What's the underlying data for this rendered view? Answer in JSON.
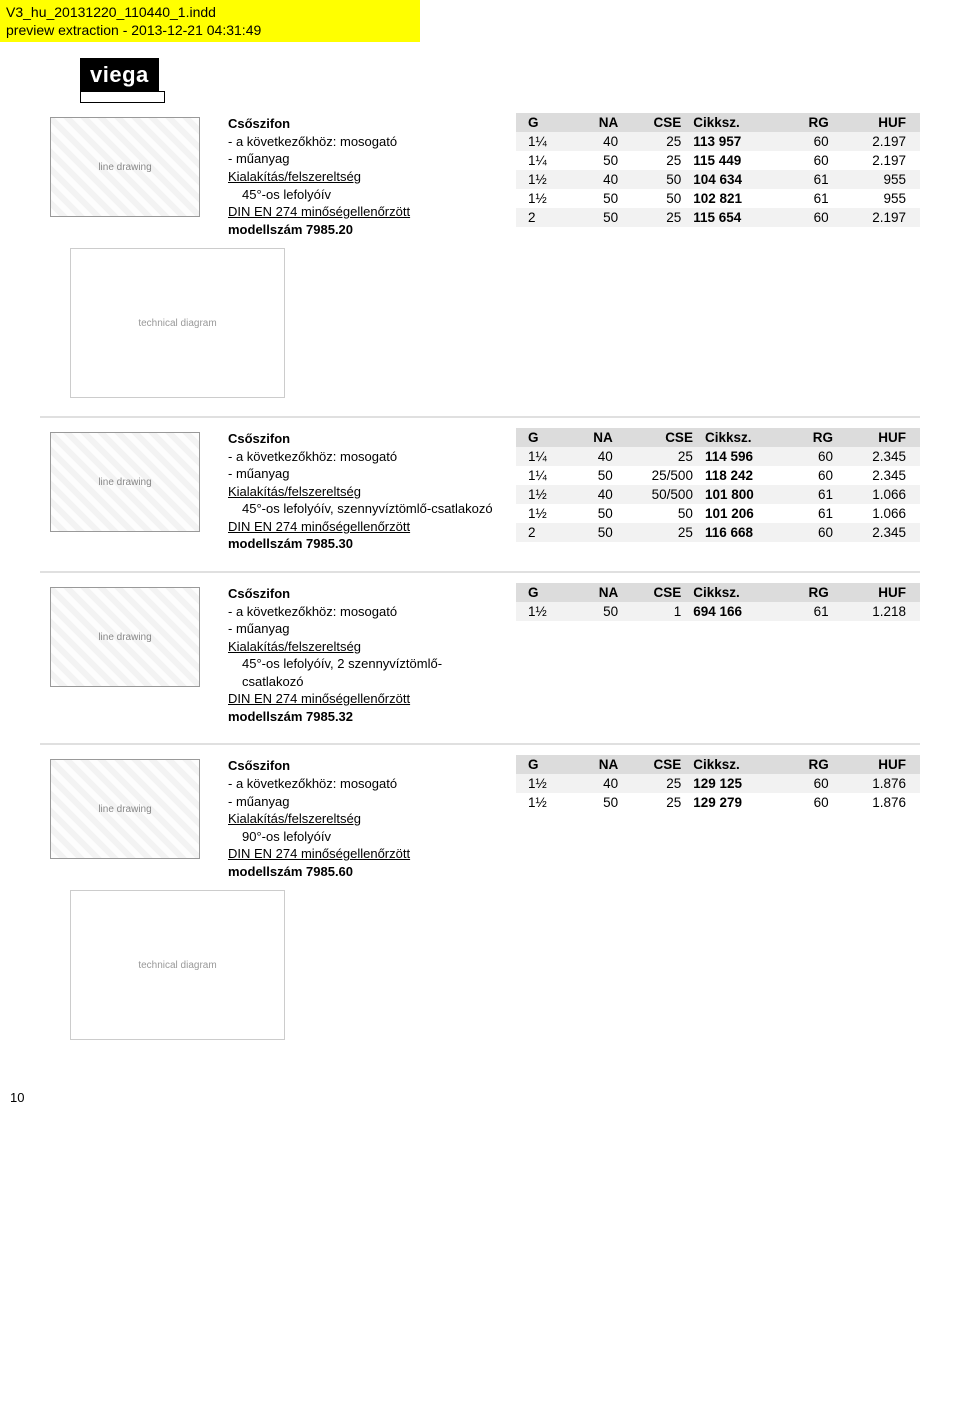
{
  "banner": {
    "line1": "V3_hu_20131220_110440_1.indd",
    "line2": "preview extraction - 2013-12-21 04:31:49"
  },
  "logo": "viega",
  "image_labels": {
    "product": "line drawing",
    "diagram": "technical diagram"
  },
  "table_headers": {
    "g": "G",
    "na": "NA",
    "cse": "CSE",
    "cikksz": "Cikksz.",
    "rg": "RG",
    "huf": "HUF"
  },
  "sections": [
    {
      "desc": {
        "title": "Csőszifon",
        "bullets": [
          "a következőkhöz: mosogató",
          "műanyag"
        ],
        "config_heading": "Kialakítás/felszereltség",
        "config_items": [
          "45°-os lefolyóív"
        ],
        "din": "DIN EN 274 minőségellenőrzött",
        "model": "modellszám 7985.20"
      },
      "rows": [
        {
          "g": "1¼",
          "na": "40",
          "cse": "25",
          "cikksz": "113 957",
          "rg": "60",
          "huf": "2.197"
        },
        {
          "g": "1¼",
          "na": "50",
          "cse": "25",
          "cikksz": "115 449",
          "rg": "60",
          "huf": "2.197"
        },
        {
          "g": "1½",
          "na": "40",
          "cse": "50",
          "cikksz": "104 634",
          "rg": "61",
          "huf": "955"
        },
        {
          "g": "1½",
          "na": "50",
          "cse": "50",
          "cikksz": "102 821",
          "rg": "61",
          "huf": "955"
        },
        {
          "g": "2",
          "na": "50",
          "cse": "25",
          "cikksz": "115 654",
          "rg": "60",
          "huf": "2.197"
        }
      ],
      "show_diagram_after": true
    },
    {
      "desc": {
        "title": "Csőszifon",
        "bullets": [
          "a következőkhöz: mosogató",
          "műanyag"
        ],
        "config_heading": "Kialakítás/felszereltség",
        "config_items": [
          "45°-os lefolyóív, szennyvíztömlő-csatlakozó"
        ],
        "din": "DIN EN 274 minőségellenőrzött",
        "model": "modellszám 7985.30"
      },
      "rows": [
        {
          "g": "1¼",
          "na": "40",
          "cse": "25",
          "cikksz": "114 596",
          "rg": "60",
          "huf": "2.345"
        },
        {
          "g": "1¼",
          "na": "50",
          "cse": "25/500",
          "cikksz": "118 242",
          "rg": "60",
          "huf": "2.345"
        },
        {
          "g": "1½",
          "na": "40",
          "cse": "50/500",
          "cikksz": "101 800",
          "rg": "61",
          "huf": "1.066"
        },
        {
          "g": "1½",
          "na": "50",
          "cse": "50",
          "cikksz": "101 206",
          "rg": "61",
          "huf": "1.066"
        },
        {
          "g": "2",
          "na": "50",
          "cse": "25",
          "cikksz": "116 668",
          "rg": "60",
          "huf": "2.345"
        }
      ]
    },
    {
      "desc": {
        "title": "Csőszifon",
        "bullets": [
          "a következőkhöz: mosogató",
          "műanyag"
        ],
        "config_heading": "Kialakítás/felszereltség",
        "config_items": [
          "45°-os lefolyóív, 2 szennyvíztömlő-csatlakozó"
        ],
        "din": "DIN EN 274 minőségellenőrzött",
        "model": "modellszám 7985.32"
      },
      "rows": [
        {
          "g": "1½",
          "na": "50",
          "cse": "1",
          "cikksz": "694 166",
          "rg": "61",
          "huf": "1.218"
        }
      ]
    },
    {
      "desc": {
        "title": "Csőszifon",
        "bullets": [
          "a következőkhöz: mosogató",
          "műanyag"
        ],
        "config_heading": "Kialakítás/felszereltség",
        "config_items": [
          "90°-os lefolyóív"
        ],
        "din": "DIN EN 274 minőségellenőrzött",
        "model": "modellszám 7985.60"
      },
      "rows": [
        {
          "g": "1½",
          "na": "40",
          "cse": "25",
          "cikksz": "129 125",
          "rg": "60",
          "huf": "1.876"
        },
        {
          "g": "1½",
          "na": "50",
          "cse": "25",
          "cikksz": "129 279",
          "rg": "60",
          "huf": "1.876"
        }
      ],
      "show_diagram_after": true
    }
  ],
  "page_number": "10",
  "colors": {
    "banner_bg": "#ffff00",
    "header_row_bg": "#dcdcdc",
    "row_odd_bg": "#f2f2f2",
    "row_even_bg": "#ffffff",
    "hr": "#e0e0e0"
  }
}
